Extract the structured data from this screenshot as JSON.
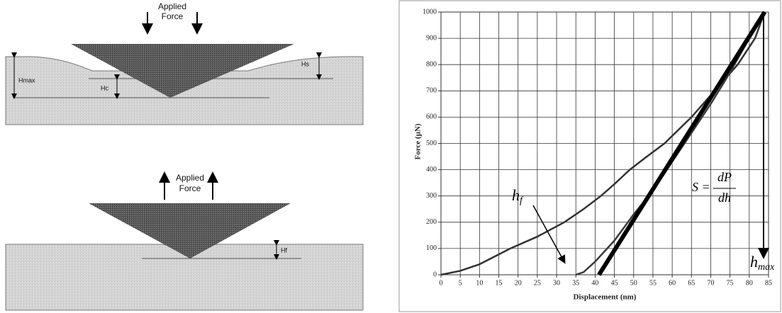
{
  "diagrams": {
    "loading": {
      "force": [
        "Applied",
        "Force"
      ],
      "hmax": "Hmax",
      "hc": "Hc",
      "hs": "Hs"
    },
    "unloading": {
      "force": [
        "Applied",
        "Force"
      ],
      "hf": "Hf"
    }
  },
  "chart_data": {
    "type": "line",
    "x_label": "Displacement (nm)",
    "y_label": "Force (µN)",
    "xlim": [
      0,
      85
    ],
    "ylim": [
      0,
      1000
    ],
    "xticks": [
      0,
      5,
      10,
      15,
      20,
      25,
      30,
      35,
      40,
      45,
      50,
      55,
      60,
      65,
      70,
      75,
      80,
      85
    ],
    "yticks": [
      0,
      100,
      200,
      300,
      400,
      500,
      600,
      700,
      800,
      900,
      1000
    ],
    "grid": true,
    "series": [
      {
        "color": "#333333",
        "x": [
          0,
          5,
          10,
          18,
          25,
          32,
          37,
          41.5,
          45,
          49,
          53,
          58,
          61.5,
          65,
          71,
          77,
          81.5,
          84
        ],
        "values": [
          0,
          15,
          40,
          100,
          145,
          200,
          250,
          300,
          345,
          400,
          445,
          500,
          550,
          600,
          700,
          800,
          900,
          1000
        ]
      },
      {
        "color": "#3a3a3a",
        "x": [
          35,
          37,
          40,
          45,
          50,
          55,
          60,
          65,
          70,
          75,
          80,
          84
        ],
        "values": [
          0,
          10,
          50,
          130,
          230,
          320,
          430,
          540,
          650,
          770,
          900,
          1000
        ]
      },
      {
        "color": "#000000",
        "x": [
          41,
          84
        ],
        "values": [
          0,
          1000
        ]
      }
    ],
    "annotations": {
      "hf": {
        "text": "h",
        "sub": "f"
      },
      "stiffness": {
        "lhs": "S =",
        "num": "dP",
        "den": "dh"
      },
      "hmax": {
        "text": "h",
        "sub": "max"
      }
    }
  }
}
